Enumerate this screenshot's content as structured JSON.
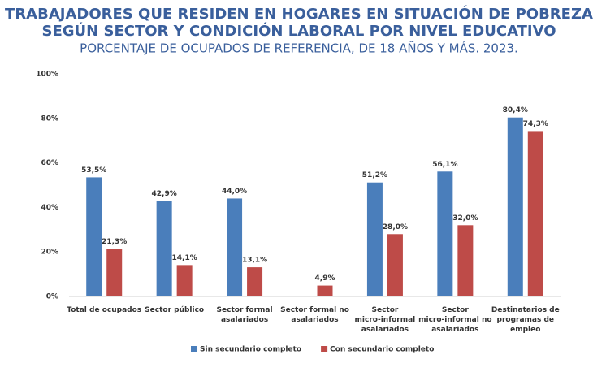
{
  "chart_data": {
    "type": "bar",
    "title": [
      "TRABAJADORES QUE RESIDEN EN HOGARES EN SITUACIÓN DE POBREZA",
      "SEGÚN SECTOR Y CONDICIÓN LABORAL POR NIVEL EDUCATIVO"
    ],
    "subtitle": "PORCENTAJE DE OCUPADOS DE REFERENCIA, DE 18 AÑOS Y MÁS. 2023.",
    "categories": [
      "Total de ocupados",
      "Sector público",
      "Sector formal asalariados",
      "Sector formal no asalariados",
      "Sector micro-informal asalariados",
      "Sector micro-informal no asalariados",
      "Destinatarios de programas de empleo"
    ],
    "series": [
      {
        "name": "Sin secundario completo",
        "color": "#4a7ebb",
        "values": [
          53.5,
          42.9,
          44.0,
          null,
          51.2,
          56.1,
          80.4
        ],
        "value_labels": [
          "53,5%",
          "42,9%",
          "44,0%",
          null,
          "51,2%",
          "56,1%",
          "80,4%"
        ]
      },
      {
        "name": "Con secundario completo",
        "color": "#be4b48",
        "values": [
          21.3,
          14.1,
          13.1,
          4.9,
          28.0,
          32.0,
          74.3
        ],
        "value_labels": [
          "21,3%",
          "14,1%",
          "13,1%",
          "4,9%",
          "28,0%",
          "32,0%",
          "74,3%"
        ]
      }
    ],
    "ylim": [
      0,
      100
    ],
    "yticks": [
      {
        "value": 0,
        "label": "0%"
      },
      {
        "value": 20,
        "label": "20%"
      },
      {
        "value": 40,
        "label": "40%"
      },
      {
        "value": 60,
        "label": "60%"
      },
      {
        "value": 80,
        "label": "80%"
      },
      {
        "value": 100,
        "label": "100%"
      }
    ],
    "legend": "bottom"
  }
}
